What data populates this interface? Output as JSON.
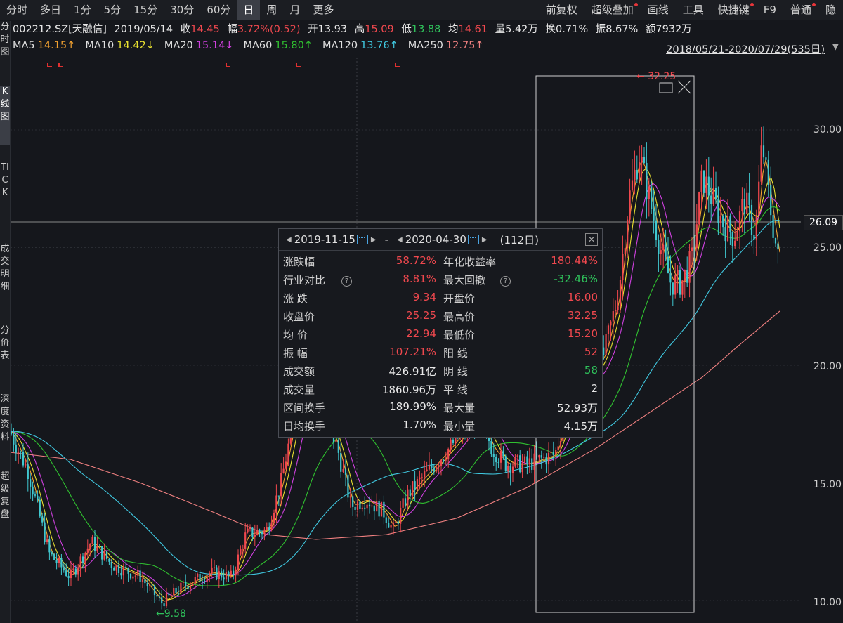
{
  "period_tabs": [
    "分时",
    "多日",
    "1分",
    "5分",
    "15分",
    "30分",
    "60分",
    "日",
    "周",
    "月",
    "更多"
  ],
  "active_period": "日",
  "toolbar_right": [
    {
      "label": "前复权",
      "dot": false
    },
    {
      "label": "超级叠加",
      "dot": true
    },
    {
      "label": "画线",
      "dot": false
    },
    {
      "label": "工具",
      "dot": false
    },
    {
      "label": "快捷键",
      "dot": true
    },
    {
      "label": "F9",
      "dot": false
    },
    {
      "label": "普通",
      "dot": true
    },
    {
      "label": "隐",
      "dot": false
    }
  ],
  "quote": {
    "code": "002212.SZ[天融信]",
    "date": "2019/05/14",
    "close_label": "收",
    "close": "14.45",
    "change_label": "幅",
    "change": "3.72%(0.52)",
    "open_label": "开",
    "open": "13.93",
    "high_label": "高",
    "high": "15.09",
    "low_label": "低",
    "low": "13.88",
    "avg_label": "均",
    "avg": "14.61",
    "vol_label": "量",
    "vol": "5.42万",
    "turnover_label": "换",
    "turnover": "0.71%",
    "amp_label": "振",
    "amp": "8.67%",
    "amount_label": "额",
    "amount": "7932万"
  },
  "ma_bar": [
    {
      "name": "MA5",
      "value": "14.15↑",
      "color": "#f0a030"
    },
    {
      "name": "MA10",
      "value": "14.42↓",
      "color": "#e8e030"
    },
    {
      "name": "MA20",
      "value": "15.14↓",
      "color": "#d040e0"
    },
    {
      "name": "MA60",
      "value": "15.80↑",
      "color": "#30c030"
    },
    {
      "name": "MA120",
      "value": "13.76↑",
      "color": "#40c8e0"
    },
    {
      "name": "MA250",
      "value": "12.75↑",
      "color": "#f08080"
    }
  ],
  "range_label": "2018/05/21-2020/07/29(535日)",
  "side_nav": [
    "分时图",
    "K线图",
    "TICK",
    "成交明细",
    "分价表",
    "深度资料",
    "超级复盘"
  ],
  "y_ticks": [
    "30.00",
    "25.00",
    "20.00",
    "15.00",
    "10.00"
  ],
  "current_price": "26.09",
  "high_marker": "32.25",
  "low_marker": "9.58",
  "panel": {
    "start_date": "2019-11-15",
    "dash": "-",
    "end_date": "2020-04-30",
    "days": "(112日)",
    "rows": [
      {
        "l": "涨跌幅",
        "v": "58.72%",
        "vc": "red",
        "l2": "年化收益率",
        "v2": "180.44%",
        "v2c": "red",
        "q1": false,
        "q2": false
      },
      {
        "l": "行业对比",
        "v": "8.81%",
        "vc": "red",
        "l2": "最大回撤",
        "v2": "-32.46%",
        "v2c": "green",
        "q1": true,
        "q2": true
      },
      {
        "l": "涨  跌",
        "v": "9.34",
        "vc": "red",
        "l2": "开盘价",
        "v2": "16.00",
        "v2c": "red",
        "q1": false,
        "q2": false
      },
      {
        "l": "收盘价",
        "v": "25.25",
        "vc": "red",
        "l2": "最高价",
        "v2": "32.25",
        "v2c": "red",
        "q1": false,
        "q2": false
      },
      {
        "l": "均  价",
        "v": "22.94",
        "vc": "red",
        "l2": "最低价",
        "v2": "15.20",
        "v2c": "red",
        "q1": false,
        "q2": false
      },
      {
        "l": "振  幅",
        "v": "107.21%",
        "vc": "red",
        "l2": "阳  线",
        "v2": "52",
        "v2c": "red",
        "q1": false,
        "q2": false
      },
      {
        "l": "成交额",
        "v": "426.91亿",
        "vc": "white",
        "l2": "阴  线",
        "v2": "58",
        "v2c": "green",
        "q1": false,
        "q2": false
      },
      {
        "l": "成交量",
        "v": "1860.96万",
        "vc": "white",
        "l2": "平  线",
        "v2": "2",
        "v2c": "white",
        "q1": false,
        "q2": false
      },
      {
        "l": "区间换手",
        "v": "189.99%",
        "vc": "white",
        "l2": "最大量",
        "v2": "52.93万",
        "v2c": "white",
        "q1": false,
        "q2": false
      },
      {
        "l": "日均换手",
        "v": "1.70%",
        "vc": "white",
        "l2": "最小量",
        "v2": "4.15万",
        "v2c": "white",
        "q1": false,
        "q2": false
      }
    ]
  },
  "colors": {
    "up": "#f0484e",
    "down": "#40c8d0",
    "bg": "#15171c"
  }
}
